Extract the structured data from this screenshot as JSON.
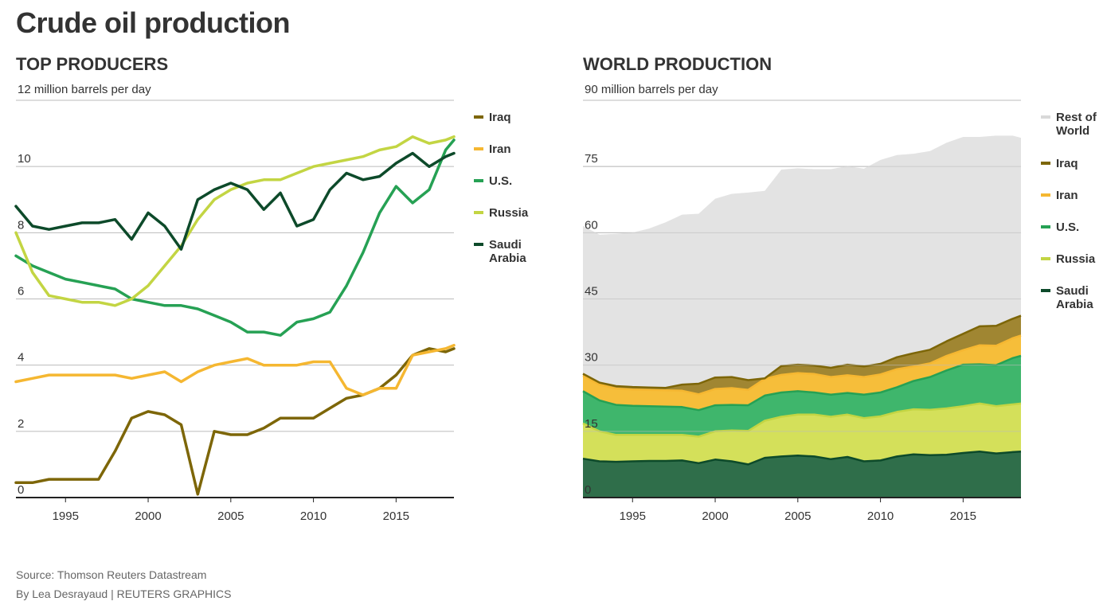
{
  "title": "Crude oil production",
  "colors": {
    "Iraq": "#7d6608",
    "Iran": "#f5b731",
    "U.S.": "#26a154",
    "Russia": "#c3d543",
    "Saudi Arabia": "#0d4a2a",
    "Rest of World": "#e3e3e3"
  },
  "area_fill_colors": {
    "Iraq": "#a08632",
    "Iran": "#f6be3a",
    "U.S.": "#3fb66c",
    "Russia": "#d4e05a",
    "Saudi Arabia": "#2f6e4a",
    "Rest of World": "#e3e3e3"
  },
  "left_chart": {
    "title": "TOP PRODUCERS",
    "unit_label": "12 million barrels per day",
    "legend": [
      "Iraq",
      "Iran",
      "U.S.",
      "Russia",
      "Saudi Arabia"
    ]
  },
  "right_chart": {
    "title": "WORLD PRODUCTION",
    "unit_label": "90 million barrels per day",
    "legend": [
      "Rest of World",
      "Iraq",
      "Iran",
      "U.S.",
      "Russia",
      "Saudi Arabia"
    ]
  },
  "chart_data": [
    {
      "type": "line",
      "title": "TOP PRODUCERS",
      "ylabel": "12 million barrels per day",
      "xlim": [
        1992,
        2018.5
      ],
      "ylim": [
        0,
        12
      ],
      "yticks": [
        0,
        2,
        4,
        6,
        8,
        10
      ],
      "xticks": [
        1995,
        2000,
        2005,
        2010,
        2015
      ],
      "x": [
        1992,
        1993,
        1994,
        1995,
        1996,
        1997,
        1998,
        1999,
        2000,
        2001,
        2002,
        2003,
        2004,
        2005,
        2006,
        2007,
        2008,
        2009,
        2010,
        2011,
        2012,
        2013,
        2014,
        2015,
        2016,
        2017,
        2018,
        2018.5
      ],
      "series": [
        {
          "name": "Iraq",
          "values": [
            0.45,
            0.45,
            0.55,
            0.55,
            0.55,
            0.55,
            1.4,
            2.4,
            2.6,
            2.5,
            2.2,
            0.1,
            2.0,
            1.9,
            1.9,
            2.1,
            2.4,
            2.4,
            2.4,
            2.7,
            3.0,
            3.1,
            3.3,
            3.7,
            4.3,
            4.5,
            4.4,
            4.5
          ]
        },
        {
          "name": "Iran",
          "values": [
            3.5,
            3.6,
            3.7,
            3.7,
            3.7,
            3.7,
            3.7,
            3.6,
            3.7,
            3.8,
            3.5,
            3.8,
            4.0,
            4.1,
            4.2,
            4.0,
            4.0,
            4.0,
            4.1,
            4.1,
            3.3,
            3.1,
            3.3,
            3.3,
            4.3,
            4.4,
            4.5,
            4.6
          ]
        },
        {
          "name": "U.S.",
          "values": [
            7.3,
            7.0,
            6.8,
            6.6,
            6.5,
            6.4,
            6.3,
            6.0,
            5.9,
            5.8,
            5.8,
            5.7,
            5.5,
            5.3,
            5.0,
            5.0,
            4.9,
            5.3,
            5.4,
            5.6,
            6.4,
            7.4,
            8.6,
            9.4,
            8.9,
            9.3,
            10.5,
            10.8
          ]
        },
        {
          "name": "Russia",
          "values": [
            8.0,
            6.8,
            6.1,
            6.0,
            5.9,
            5.9,
            5.8,
            6.0,
            6.4,
            7.0,
            7.6,
            8.4,
            9.0,
            9.3,
            9.5,
            9.6,
            9.6,
            9.8,
            10.0,
            10.1,
            10.2,
            10.3,
            10.5,
            10.6,
            10.9,
            10.7,
            10.8,
            10.9
          ]
        },
        {
          "name": "Saudi Arabia",
          "values": [
            8.8,
            8.2,
            8.1,
            8.2,
            8.3,
            8.3,
            8.4,
            7.8,
            8.6,
            8.2,
            7.5,
            9.0,
            9.3,
            9.5,
            9.3,
            8.7,
            9.2,
            8.2,
            8.4,
            9.3,
            9.8,
            9.6,
            9.7,
            10.1,
            10.4,
            10.0,
            10.3,
            10.4
          ]
        }
      ]
    },
    {
      "type": "area",
      "stacked": true,
      "title": "WORLD PRODUCTION",
      "ylabel": "90 million barrels per day",
      "xlim": [
        1992,
        2018.5
      ],
      "ylim": [
        0,
        90
      ],
      "yticks": [
        0,
        15,
        30,
        45,
        60,
        75
      ],
      "xticks": [
        1995,
        2000,
        2005,
        2010,
        2015
      ],
      "x": [
        1992,
        1993,
        1994,
        1995,
        1996,
        1997,
        1998,
        1999,
        2000,
        2001,
        2002,
        2003,
        2004,
        2005,
        2006,
        2007,
        2008,
        2009,
        2010,
        2011,
        2012,
        2013,
        2014,
        2015,
        2016,
        2017,
        2018,
        2018.5
      ],
      "series": [
        {
          "name": "Saudi Arabia",
          "values": [
            8.8,
            8.2,
            8.1,
            8.2,
            8.3,
            8.3,
            8.4,
            7.8,
            8.6,
            8.2,
            7.5,
            9.0,
            9.3,
            9.5,
            9.3,
            8.7,
            9.2,
            8.2,
            8.4,
            9.3,
            9.8,
            9.6,
            9.7,
            10.1,
            10.4,
            10.0,
            10.3,
            10.4
          ]
        },
        {
          "name": "Russia",
          "values": [
            8.0,
            6.8,
            6.1,
            6.0,
            5.9,
            5.9,
            5.8,
            6.0,
            6.4,
            7.0,
            7.6,
            8.4,
            9.0,
            9.3,
            9.5,
            9.6,
            9.6,
            9.8,
            10.0,
            10.1,
            10.2,
            10.3,
            10.5,
            10.6,
            10.9,
            10.7,
            10.8,
            10.9
          ]
        },
        {
          "name": "U.S.",
          "values": [
            7.3,
            7.0,
            6.8,
            6.6,
            6.5,
            6.4,
            6.3,
            6.0,
            5.9,
            5.8,
            5.8,
            5.7,
            5.5,
            5.3,
            5.0,
            5.0,
            4.9,
            5.3,
            5.4,
            5.6,
            6.4,
            7.4,
            8.6,
            9.4,
            8.9,
            9.3,
            10.5,
            10.8
          ]
        },
        {
          "name": "Iran",
          "values": [
            3.5,
            3.6,
            3.7,
            3.7,
            3.7,
            3.7,
            3.7,
            3.6,
            3.7,
            3.8,
            3.5,
            3.8,
            4.0,
            4.1,
            4.2,
            4.0,
            4.0,
            4.0,
            4.1,
            4.1,
            3.3,
            3.1,
            3.3,
            3.3,
            4.3,
            4.4,
            4.5,
            4.6
          ]
        },
        {
          "name": "Iraq",
          "values": [
            0.45,
            0.45,
            0.55,
            0.55,
            0.55,
            0.55,
            1.4,
            2.4,
            2.6,
            2.5,
            2.2,
            0.1,
            2.0,
            1.9,
            1.9,
            2.1,
            2.4,
            2.4,
            2.4,
            2.7,
            3.0,
            3.1,
            3.3,
            3.7,
            4.3,
            4.5,
            4.4,
            4.5
          ]
        },
        {
          "name": "Rest of World",
          "values": [
            33.5,
            33.5,
            34.5,
            35.0,
            36.0,
            37.5,
            38.5,
            38.5,
            40.5,
            41.5,
            42.5,
            42.5,
            44.5,
            44.5,
            44.5,
            45.0,
            45.0,
            44.8,
            46.2,
            45.8,
            45.2,
            45.0,
            45.0,
            44.6,
            42.9,
            43.1,
            41.5,
            40.3
          ]
        }
      ]
    }
  ],
  "footer": {
    "source": "Source: Thomson Reuters Datastream",
    "byline": "By Lea Desrayaud | REUTERS GRAPHICS"
  }
}
